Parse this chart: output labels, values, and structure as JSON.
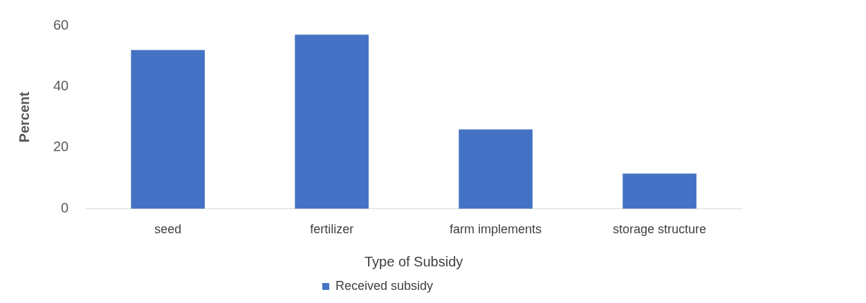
{
  "chart_data": {
    "type": "bar",
    "xlabel": "Type of Subsidy",
    "ylabel": "Percent",
    "categories": [
      "seed",
      "fertilizer",
      "farm implements",
      "storage structure"
    ],
    "series": [
      {
        "name": "Received subsidy",
        "color": "#4472c4",
        "values": [
          52,
          57,
          26,
          11.5
        ]
      }
    ],
    "ylim": [
      0,
      60
    ],
    "yticks": [
      0,
      20,
      40,
      60
    ],
    "grid": false,
    "legend": "bottom"
  }
}
